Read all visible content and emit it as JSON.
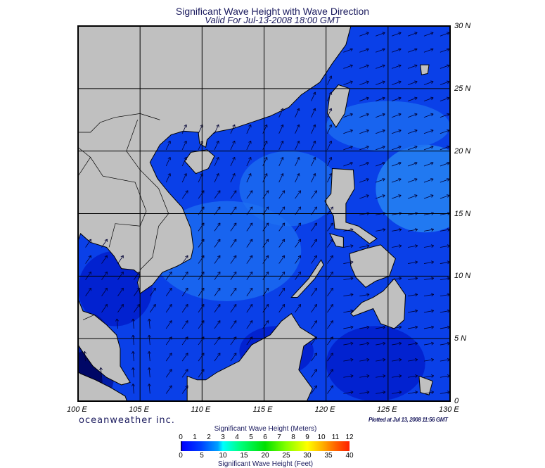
{
  "title": "Significant Wave Height with Wave Direction",
  "subtitle": "Valid For Jul-13-2008 18:00 GMT",
  "map": {
    "lon_range": [
      100,
      130
    ],
    "lat_range": [
      0,
      30
    ],
    "lon_labels": [
      "100 E",
      "105 E",
      "110 E",
      "115 E",
      "120 E",
      "125 E",
      "130 E"
    ],
    "lat_labels": [
      "30 N",
      "25 N",
      "20 N",
      "15 N",
      "10 N",
      "5 N",
      "0"
    ],
    "colors": {
      "land": "#c0c0c0",
      "ocean_base": "#0a40e8",
      "ocean_light": "#1e70f2",
      "ocean_dark": "#0018c8",
      "arrow": "#000033"
    }
  },
  "brand": "oceanweather inc.",
  "plotted": "Plotted at Jul 13, 2008 11:56 GMT",
  "colorbar": {
    "title_top": "Significant Wave Height (Meters)",
    "title_bottom": "Significant Wave Height (Feet)",
    "meters": [
      "0",
      "1",
      "2",
      "3",
      "4",
      "5",
      "6",
      "7",
      "8",
      "9",
      "10",
      "11",
      "12"
    ],
    "feet": [
      "0",
      "5",
      "10",
      "15",
      "20",
      "25",
      "30",
      "35",
      "40"
    ],
    "range_m": [
      0,
      12
    ],
    "range_ft": [
      0,
      40
    ]
  }
}
